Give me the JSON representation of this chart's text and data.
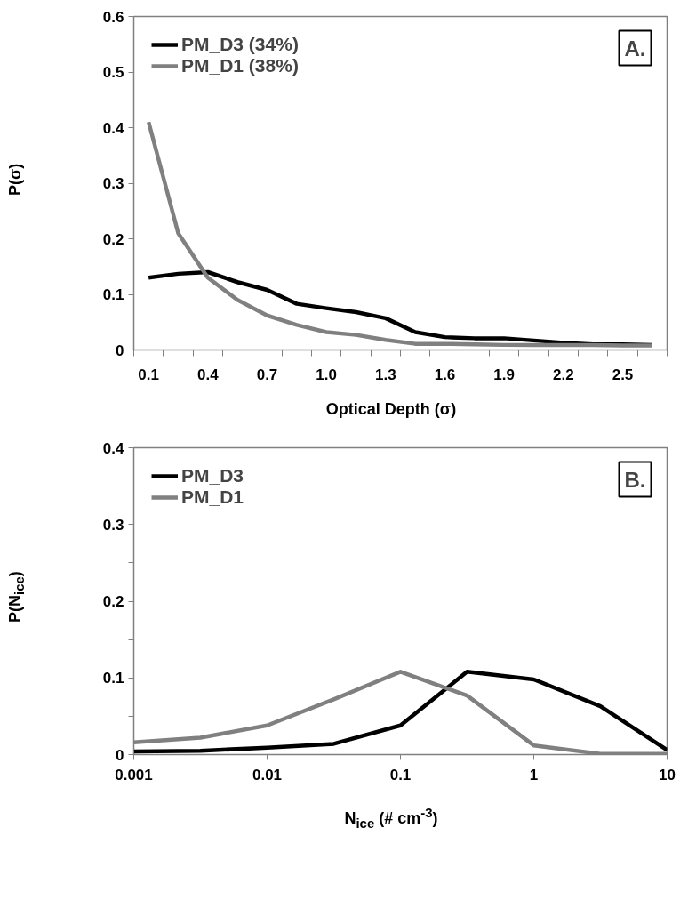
{
  "chart_data": [
    {
      "type": "line",
      "xlabel": "Optical Depth (σ)",
      "ylabel": "P(σ)",
      "annotations": [
        "A."
      ],
      "categories": [
        "0.1",
        null,
        "0.4",
        null,
        "0.7",
        null,
        "1.0",
        null,
        "1.3",
        null,
        "1.6",
        null,
        "1.9",
        null,
        "2.2",
        null,
        "2.5",
        null
      ],
      "series": [
        {
          "name": "PM_D3 (34%)",
          "color": "#000000",
          "values": [
            0.13,
            0.137,
            0.14,
            0.122,
            0.108,
            0.083,
            0.075,
            0.068,
            0.057,
            0.032,
            0.023,
            0.021,
            0.021,
            0.017,
            0.013,
            0.01,
            0.01,
            0.009
          ]
        },
        {
          "name": "PM_D1 (38%)",
          "color": "#808080",
          "values": [
            0.41,
            0.21,
            0.13,
            0.09,
            0.062,
            0.045,
            0.032,
            0.027,
            0.018,
            0.011,
            0.011,
            0.01,
            0.009,
            0.009,
            0.009,
            0.009,
            0.008,
            0.008
          ]
        }
      ],
      "ylim": [
        0,
        0.6
      ],
      "yticks": [
        0,
        0.1,
        0.2,
        0.3,
        0.4,
        0.5,
        0.6
      ],
      "grid": false,
      "legend": "top left",
      "marker": "none",
      "line_style": "solid"
    },
    {
      "type": "line",
      "xlabel": "N$_{ice}$ (# cm$^{-3}$)",
      "ylabel": "P(N$_{ice}$)",
      "annotations": [
        "B."
      ],
      "x": [
        0.001,
        0.00316,
        0.01,
        0.0316,
        0.1,
        0.316,
        1,
        3.16,
        10
      ],
      "series": [
        {
          "name": "PM_D3",
          "color": "#000000",
          "values": [
            0.004,
            0.005,
            0.009,
            0.014,
            0.038,
            0.108,
            0.098,
            0.063,
            0.006
          ]
        },
        {
          "name": "PM_D1",
          "color": "#808080",
          "values": [
            0.016,
            0.022,
            0.038,
            0.072,
            0.108,
            0.077,
            0.012,
            0.001,
            0.001
          ]
        }
      ],
      "log": "x",
      "xlim": [
        0.001,
        10
      ],
      "xticks": [
        0.001,
        0.01,
        0.1,
        1,
        10
      ],
      "ylim": [
        0,
        0.4
      ],
      "yticks": [
        0,
        {
          "value": 0.05,
          "label": null
        },
        0.1,
        {
          "value": 0.15,
          "label": null
        },
        0.2,
        {
          "value": 0.25,
          "label": null
        },
        0.3,
        {
          "value": 0.35,
          "label": null
        },
        0.4
      ],
      "grid": false,
      "legend": "top left",
      "marker": "none",
      "line_style": "solid"
    }
  ]
}
